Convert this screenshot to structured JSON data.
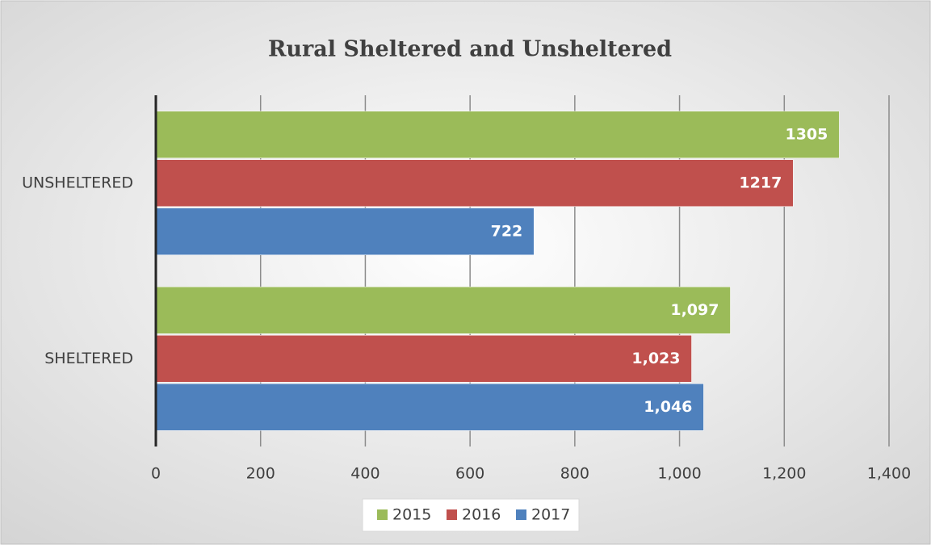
{
  "chart_data": {
    "type": "hbar",
    "title": "Rural Sheltered and Unsheltered",
    "categories": [
      "UNSHELTERED",
      "SHELTERED"
    ],
    "series": [
      {
        "name": "2015",
        "color": "#9bbb59",
        "values": [
          1305,
          1097
        ],
        "value_labels": [
          "1305",
          "1,097"
        ]
      },
      {
        "name": "2016",
        "color": "#c0504d",
        "values": [
          1217,
          1023
        ],
        "value_labels": [
          "1217",
          "1,023"
        ]
      },
      {
        "name": "2017",
        "color": "#4f81bd",
        "values": [
          722,
          1046
        ],
        "value_labels": [
          "722",
          "1,046"
        ]
      }
    ],
    "xlim": [
      0,
      1400
    ],
    "xticks": [
      0,
      200,
      400,
      600,
      800,
      {
        "value": 1000,
        "label": "1,000"
      },
      {
        "value": 1200,
        "label": "1,200"
      },
      {
        "value": 1400,
        "label": "1,400"
      }
    ],
    "grid": true,
    "legend": "bottom"
  }
}
